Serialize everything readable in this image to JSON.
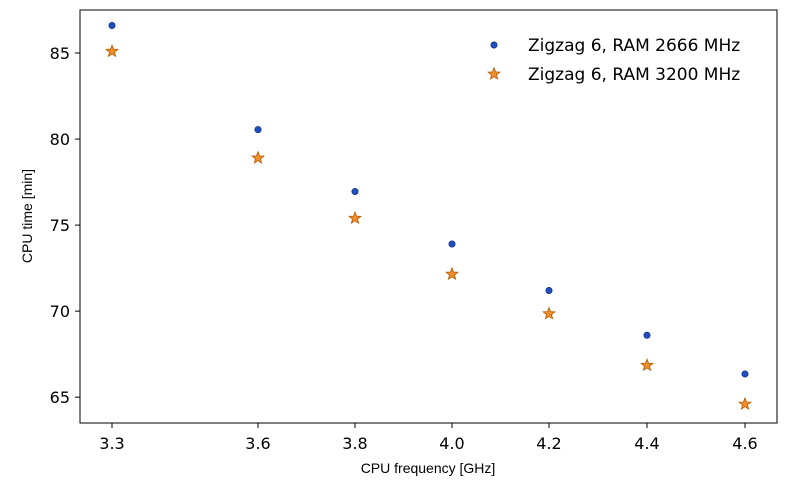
{
  "chart_data": {
    "type": "scatter",
    "xlabel": "CPU frequency [GHz]",
    "ylabel": "CPU time [min]",
    "xlim": [
      3.25,
      4.65
    ],
    "ylim": [
      63.5,
      87.5
    ],
    "x_ticks": [
      3.3,
      3.6,
      3.8,
      4.0,
      4.2,
      4.4,
      4.6
    ],
    "x_tick_labels": [
      "3.3",
      "3.6",
      "3.8",
      "4.0",
      "4.2",
      "4.4",
      "4.6"
    ],
    "y_ticks": [
      65,
      70,
      75,
      80,
      85
    ],
    "y_tick_labels": [
      "65",
      "70",
      "75",
      "80",
      "85"
    ],
    "legend_position": "top-right",
    "series": [
      {
        "name": "Zigzag 6, RAM 2666 MHz",
        "marker": "circle",
        "color": "#1f4fbf",
        "x": [
          3.3,
          3.6,
          3.8,
          4.0,
          4.2,
          4.4,
          4.6
        ],
        "y": [
          86.6,
          80.55,
          76.95,
          73.9,
          71.2,
          68.6,
          66.35
        ]
      },
      {
        "name": "Zigzag 6, RAM 3200 MHz",
        "marker": "star",
        "color": "#f28e2b",
        "x": [
          3.3,
          3.6,
          3.8,
          4.0,
          4.2,
          4.4,
          4.6
        ],
        "y": [
          85.1,
          78.9,
          75.4,
          72.15,
          69.85,
          66.85,
          64.6
        ]
      }
    ]
  }
}
